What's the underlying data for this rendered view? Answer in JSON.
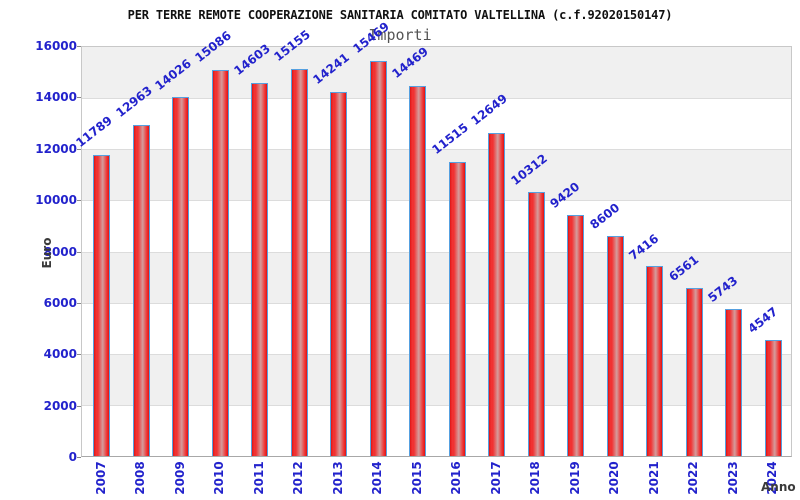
{
  "chart_data": {
    "type": "bar",
    "title": "PER TERRE REMOTE COOPERAZIONE SANITARIA COMITATO VALTELLINA (c.f.92020150147)",
    "subtitle": "Importi",
    "xlabel": "Anno",
    "ylabel": "Euro",
    "categories": [
      "2007",
      "2008",
      "2009",
      "2010",
      "2011",
      "2012",
      "2013",
      "2014",
      "2015",
      "2016",
      "2017",
      "2018",
      "2019",
      "2020",
      "2021",
      "2022",
      "2023",
      "2024"
    ],
    "values": [
      11789,
      12963,
      14026,
      15086,
      14603,
      15155,
      14241,
      15469,
      14469,
      11515,
      12649,
      10312,
      9420,
      8600,
      7416,
      6561,
      5743,
      4547
    ],
    "ylim": [
      0,
      16000
    ],
    "yticks": [
      0,
      2000,
      4000,
      6000,
      8000,
      10000,
      12000,
      14000,
      16000
    ],
    "grid": "horizontal-bands-alternating",
    "legend": "none",
    "bar_labels_rotation_deg": -38,
    "x_labels_rotation_deg": -90,
    "colors": {
      "bar_red": "#dd1414",
      "bar_bright_red": "#f13232",
      "bar_highlight": "#d49c9c",
      "bar_border": "#55a0e0",
      "label_blue": "#2222cc",
      "band_gray": "#f0f0f0",
      "band_white": "#ffffff",
      "axis_text": "#3a3a3a",
      "title_text": "#111111",
      "subtitle_text": "#555555"
    }
  }
}
